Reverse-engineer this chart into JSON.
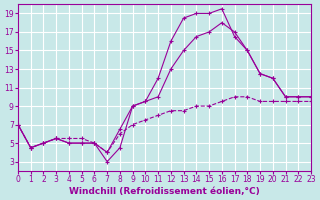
{
  "bg_color": "#c8e8e8",
  "grid_color": "#ffffff",
  "line_color": "#990099",
  "xlabel": "Windchill (Refroidissement éolien,°C)",
  "xlim": [
    0,
    23
  ],
  "ylim": [
    2,
    20
  ],
  "yticks": [
    3,
    5,
    7,
    9,
    11,
    13,
    15,
    17,
    19
  ],
  "xticks": [
    0,
    1,
    2,
    3,
    4,
    5,
    6,
    7,
    8,
    9,
    10,
    11,
    12,
    13,
    14,
    15,
    16,
    17,
    18,
    19,
    20,
    21,
    22,
    23
  ],
  "series1_x": [
    0,
    1,
    2,
    3,
    4,
    5,
    6,
    7,
    8,
    9,
    10,
    11,
    12,
    13,
    14,
    15,
    16,
    17,
    18,
    19,
    20,
    21,
    22,
    23
  ],
  "series1_y": [
    7,
    4.5,
    5,
    5.5,
    5,
    5,
    5,
    3,
    4.5,
    9,
    9.5,
    12,
    16,
    18.5,
    19,
    19,
    19.5,
    16.5,
    15,
    12.5,
    12,
    10,
    10,
    10
  ],
  "series2_x": [
    0,
    1,
    2,
    3,
    4,
    5,
    6,
    7,
    8,
    9,
    10,
    11,
    12,
    13,
    14,
    15,
    16,
    17,
    18,
    19,
    20,
    21,
    22,
    23
  ],
  "series2_y": [
    7,
    4.5,
    5,
    5.5,
    5,
    5,
    5,
    4,
    6.5,
    9,
    9.5,
    10,
    13,
    15,
    16.5,
    17,
    18,
    17,
    15,
    12.5,
    12,
    10,
    10,
    10
  ],
  "series3_x": [
    0,
    1,
    2,
    3,
    4,
    5,
    6,
    7,
    8,
    9,
    10,
    11,
    12,
    13,
    14,
    15,
    16,
    17,
    18,
    19,
    20,
    21,
    22,
    23
  ],
  "series3_y": [
    7,
    4.5,
    5,
    5.5,
    5.5,
    5.5,
    5,
    4,
    6,
    7,
    7.5,
    8,
    8.5,
    8.5,
    9,
    9,
    9.5,
    10,
    10,
    9.5,
    9.5,
    9.5,
    9.5,
    9.5
  ],
  "tick_fontsize": 5.5,
  "xlabel_fontsize": 6.5,
  "marker": "+"
}
